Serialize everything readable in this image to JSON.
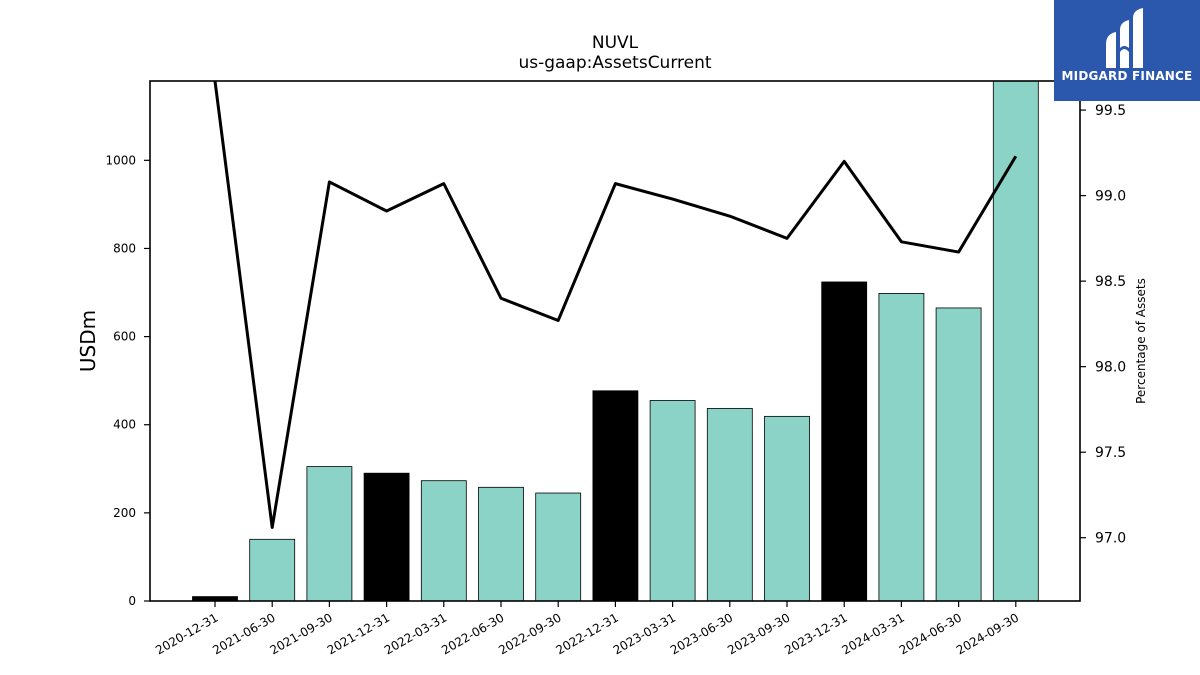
{
  "chart_data": {
    "type": "bar",
    "title": "NUVL",
    "subtitle": "us-gaap:AssetsCurrent",
    "ylabel": "USDm",
    "y2label": "Percentage of Assets",
    "categories": [
      "2020-12-31",
      "2021-06-30",
      "2021-09-30",
      "2021-12-31",
      "2022-03-31",
      "2022-06-30",
      "2022-09-30",
      "2022-12-31",
      "2023-03-31",
      "2023-06-30",
      "2023-09-30",
      "2023-12-31",
      "2024-03-31",
      "2024-06-30",
      "2024-09-30"
    ],
    "series": [
      {
        "values": [
          10,
          140,
          305,
          290,
          273,
          258,
          245,
          477,
          455,
          437,
          419,
          724,
          698,
          665,
          1180
        ]
      },
      {
        "type": "line",
        "axis": "right",
        "values": [
          99.67,
          97.06,
          99.08,
          98.91,
          99.07,
          98.4,
          98.27,
          99.07,
          98.98,
          98.88,
          98.75,
          99.2,
          98.73,
          98.67,
          99.23
        ]
      }
    ],
    "bar_colors": [
      "#000000",
      "#8cd3c7",
      "#8cd3c7",
      "#000000",
      "#8cd3c7",
      "#8cd3c7",
      "#8cd3c7",
      "#000000",
      "#8cd3c7",
      "#8cd3c7",
      "#8cd3c7",
      "#000000",
      "#8cd3c7",
      "#8cd3c7",
      "#8cd3c7"
    ],
    "ylim": [
      0,
      1180
    ],
    "y2lim": [
      96.63,
      99.67
    ],
    "yticks": [
      0,
      200,
      400,
      600,
      800,
      1000
    ],
    "y2ticks": [
      97.0,
      97.5,
      98.0,
      98.5,
      99.0,
      99.5
    ],
    "y2ticklabels": [
      "97.0",
      "97.5",
      "98.0",
      "98.5",
      "99.0",
      "99.5"
    ],
    "grid": false,
    "legend": "none"
  },
  "branding": {
    "logo_text": "MIDGARD FINANCE",
    "logo_color": "#2b58ad"
  }
}
